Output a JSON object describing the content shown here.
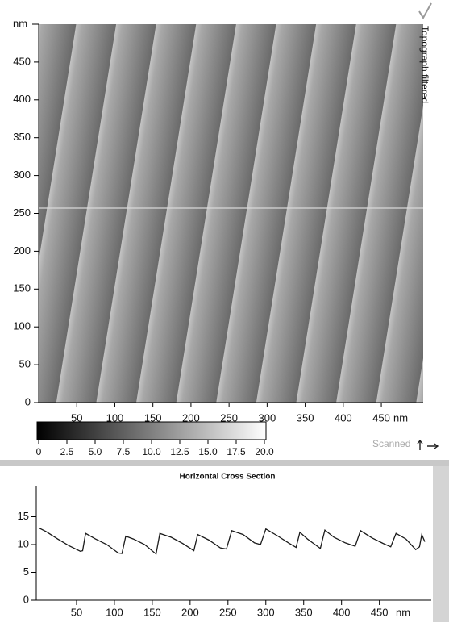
{
  "image_panel": {
    "title": "Topograph filtered",
    "y_unit": "nm",
    "x_unit": "nm",
    "xlim": [
      0,
      505
    ],
    "ylim": [
      0,
      500
    ],
    "xticks": [
      50,
      100,
      150,
      200,
      250,
      300,
      350,
      400,
      450
    ],
    "yticks": [
      0,
      50,
      100,
      150,
      200,
      250,
      300,
      350,
      400,
      450
    ],
    "colorbar": {
      "lim": [
        0,
        20
      ],
      "ticks": [
        0,
        {
          "value": 2.5,
          "label": "2.5"
        },
        {
          "value": 5,
          "label": "5.0"
        },
        {
          "value": 7.5,
          "label": "7.5"
        },
        {
          "value": 10,
          "label": "10.0"
        },
        {
          "value": 12.5,
          "label": "12.5"
        },
        {
          "value": 15,
          "label": "15.0"
        },
        {
          "value": 17.5,
          "label": "17.5"
        },
        {
          "value": 20,
          "label": "20.0"
        }
      ]
    },
    "scan_label": "Scanned"
  },
  "chart_data": {
    "type": "line",
    "title": "Horizontal Cross Section",
    "x_unit": "nm",
    "color": "#1a1a1a",
    "x": [
      0,
      10,
      25,
      40,
      55,
      58,
      62,
      75,
      90,
      105,
      110,
      115,
      125,
      140,
      155,
      160,
      175,
      190,
      205,
      210,
      225,
      240,
      248,
      255,
      270,
      285,
      293,
      300,
      315,
      330,
      340,
      345,
      355,
      365,
      372,
      378,
      390,
      405,
      418,
      425,
      440,
      455,
      465,
      472,
      485,
      498,
      503,
      506,
      510
    ],
    "values": [
      13,
      12.3,
      11,
      9.8,
      8.8,
      8.9,
      12,
      11,
      10,
      8.5,
      8.4,
      11.5,
      11,
      10,
      8.3,
      12,
      11.3,
      10.2,
      8.9,
      11.8,
      10.8,
      9.4,
      9.2,
      12.5,
      11.8,
      10.3,
      10,
      12.8,
      11.6,
      10.3,
      9.5,
      12.2,
      11,
      10,
      9.3,
      12.6,
      11.3,
      10.3,
      9.7,
      12.5,
      11.2,
      10.2,
      9.6,
      12,
      11,
      9.1,
      9.6,
      11.8,
      10.5
    ],
    "xlim": [
      0,
      510
    ],
    "ylim": [
      0,
      20
    ],
    "xticks": [
      50,
      100,
      150,
      200,
      250,
      300,
      350,
      400,
      450
    ],
    "yticks": [
      0,
      5,
      10,
      15
    ]
  }
}
